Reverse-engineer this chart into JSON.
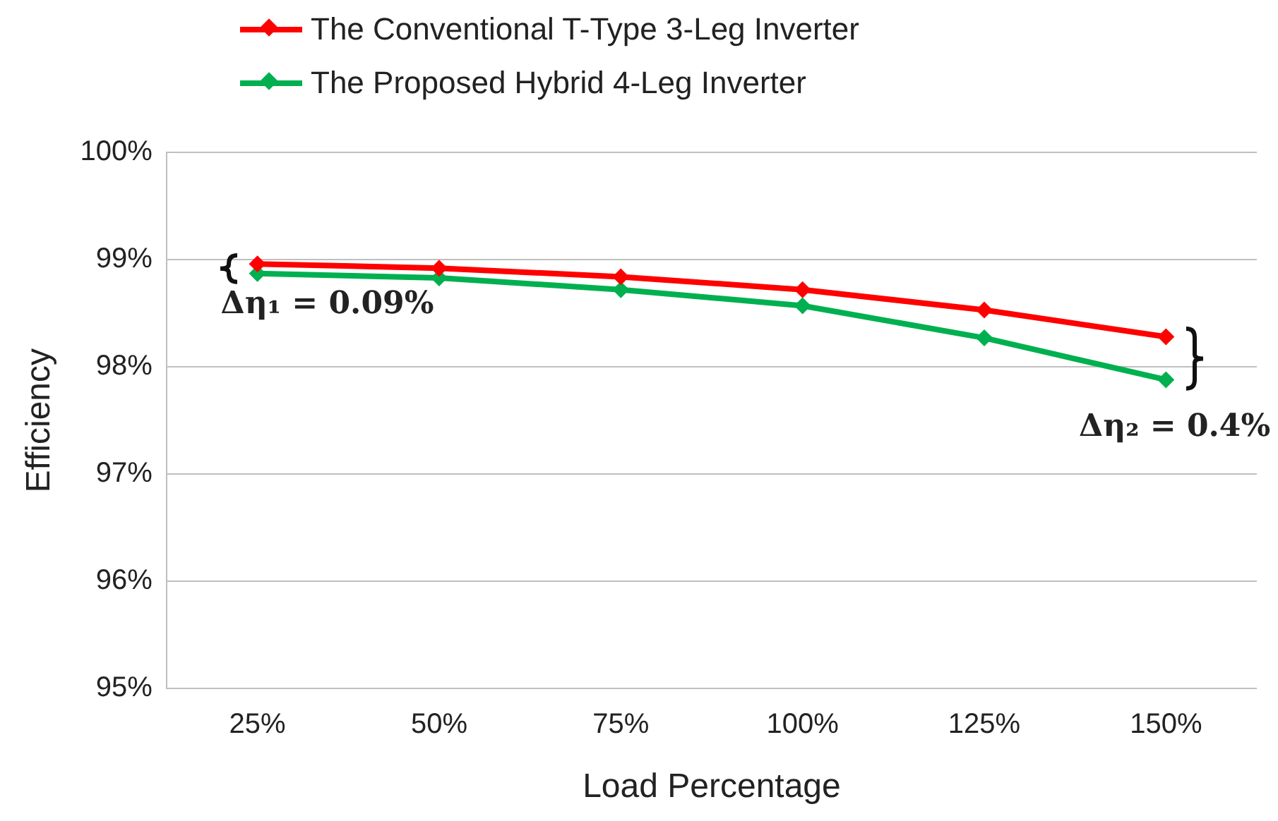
{
  "chart_data": {
    "type": "line",
    "xlabel": "Load Percentage",
    "ylabel": "Efficiency",
    "categories": [
      "25%",
      "50%",
      "75%",
      "100%",
      "125%",
      "150%"
    ],
    "series": [
      {
        "name": "The Conventional T-Type 3-Leg Inverter",
        "color": "#ff0000",
        "values": [
          98.96,
          98.92,
          98.84,
          98.72,
          98.53,
          98.28
        ]
      },
      {
        "name": "The Proposed Hybrid 4-Leg Inverter",
        "color": "#00b050",
        "values": [
          98.87,
          98.83,
          98.72,
          98.57,
          98.27,
          97.88
        ]
      }
    ],
    "ylim": [
      95,
      100
    ],
    "yticks": [
      {
        "value": 95,
        "label": "95%"
      },
      {
        "value": 96,
        "label": "96%"
      },
      {
        "value": 97,
        "label": "97%"
      },
      {
        "value": 98,
        "label": "98%"
      },
      {
        "value": 99,
        "label": "99%"
      },
      {
        "value": 100,
        "label": "100%"
      }
    ],
    "annotations": [
      "Δη₁ = 0.09%",
      "Δη₂ = 0.4%"
    ],
    "grid": "y",
    "legend": "top",
    "marker": "diamond",
    "line_style": "solid"
  }
}
